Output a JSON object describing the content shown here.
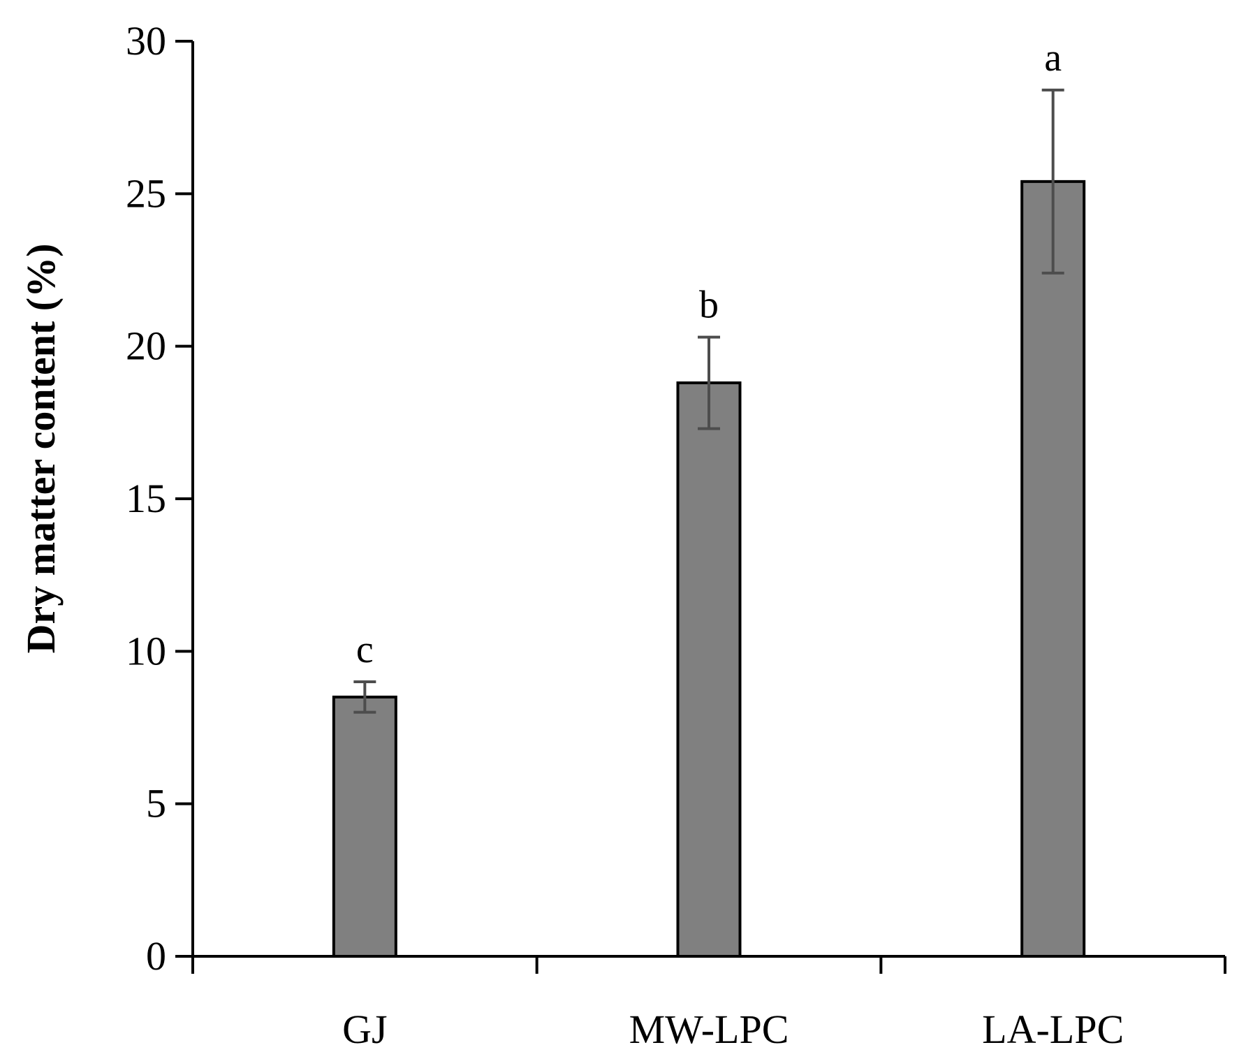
{
  "chart_data": {
    "type": "bar",
    "title": "",
    "xlabel": "",
    "ylabel": "Dry matter content (%)",
    "ylim": [
      0,
      30
    ],
    "yticks": [
      0,
      5,
      10,
      15,
      20,
      25,
      30
    ],
    "grid": false,
    "legend": "none",
    "categories": [
      "GJ",
      "MW-LPC",
      "LA-LPC"
    ],
    "values": [
      8.5,
      18.8,
      25.4
    ],
    "error_bars": [
      0.5,
      1.5,
      3.0
    ],
    "significance_letters": [
      "c",
      "b",
      "a"
    ],
    "bar_color": "#808080",
    "bar_edge_color": "#000000",
    "error_bar_color": "#4d4d4d"
  }
}
